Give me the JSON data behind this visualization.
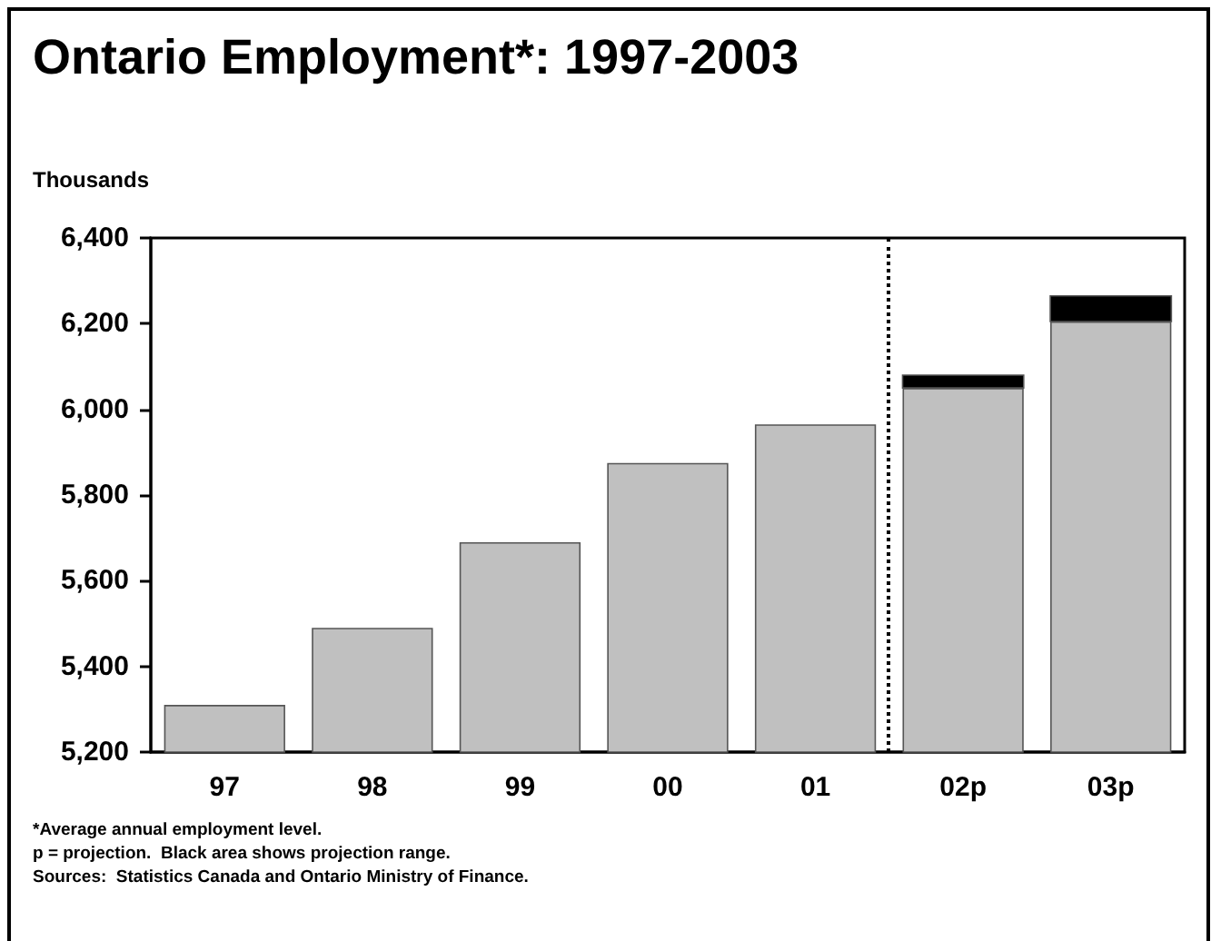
{
  "chart_data": {
    "type": "bar",
    "title": "Ontario Employment*: 1997-2003",
    "ylabel": "Thousands",
    "categories": [
      "97",
      "98",
      "99",
      "00",
      "01",
      "02p",
      "03p"
    ],
    "series": [
      {
        "color": "#c0c0c0",
        "values": [
          5310,
          5490,
          5690,
          5875,
          5965,
          6050,
          6205
        ]
      },
      {
        "color": "#000000",
        "values": [
          null,
          null,
          null,
          null,
          null,
          30,
          60
        ],
        "base": [
          null,
          null,
          null,
          null,
          null,
          6050,
          6205
        ]
      }
    ],
    "ylim": [
      5200,
      6400
    ],
    "yticks": [
      {
        "value": 5200,
        "label": "5,200"
      },
      {
        "value": 5400,
        "label": "5,400"
      },
      {
        "value": 5600,
        "label": "5,600"
      },
      {
        "value": 5800,
        "label": "5,800"
      },
      {
        "value": 6000,
        "label": "6,000"
      },
      {
        "value": 6200,
        "label": "6,200"
      },
      {
        "value": 6400,
        "label": "6,400"
      }
    ],
    "grid": false,
    "annotations": [
      "*Average annual employment level.",
      "p = projection.  Black area shows projection range.",
      "Sources:  Statistics Canada and Ontario Ministry of Finance."
    ]
  }
}
